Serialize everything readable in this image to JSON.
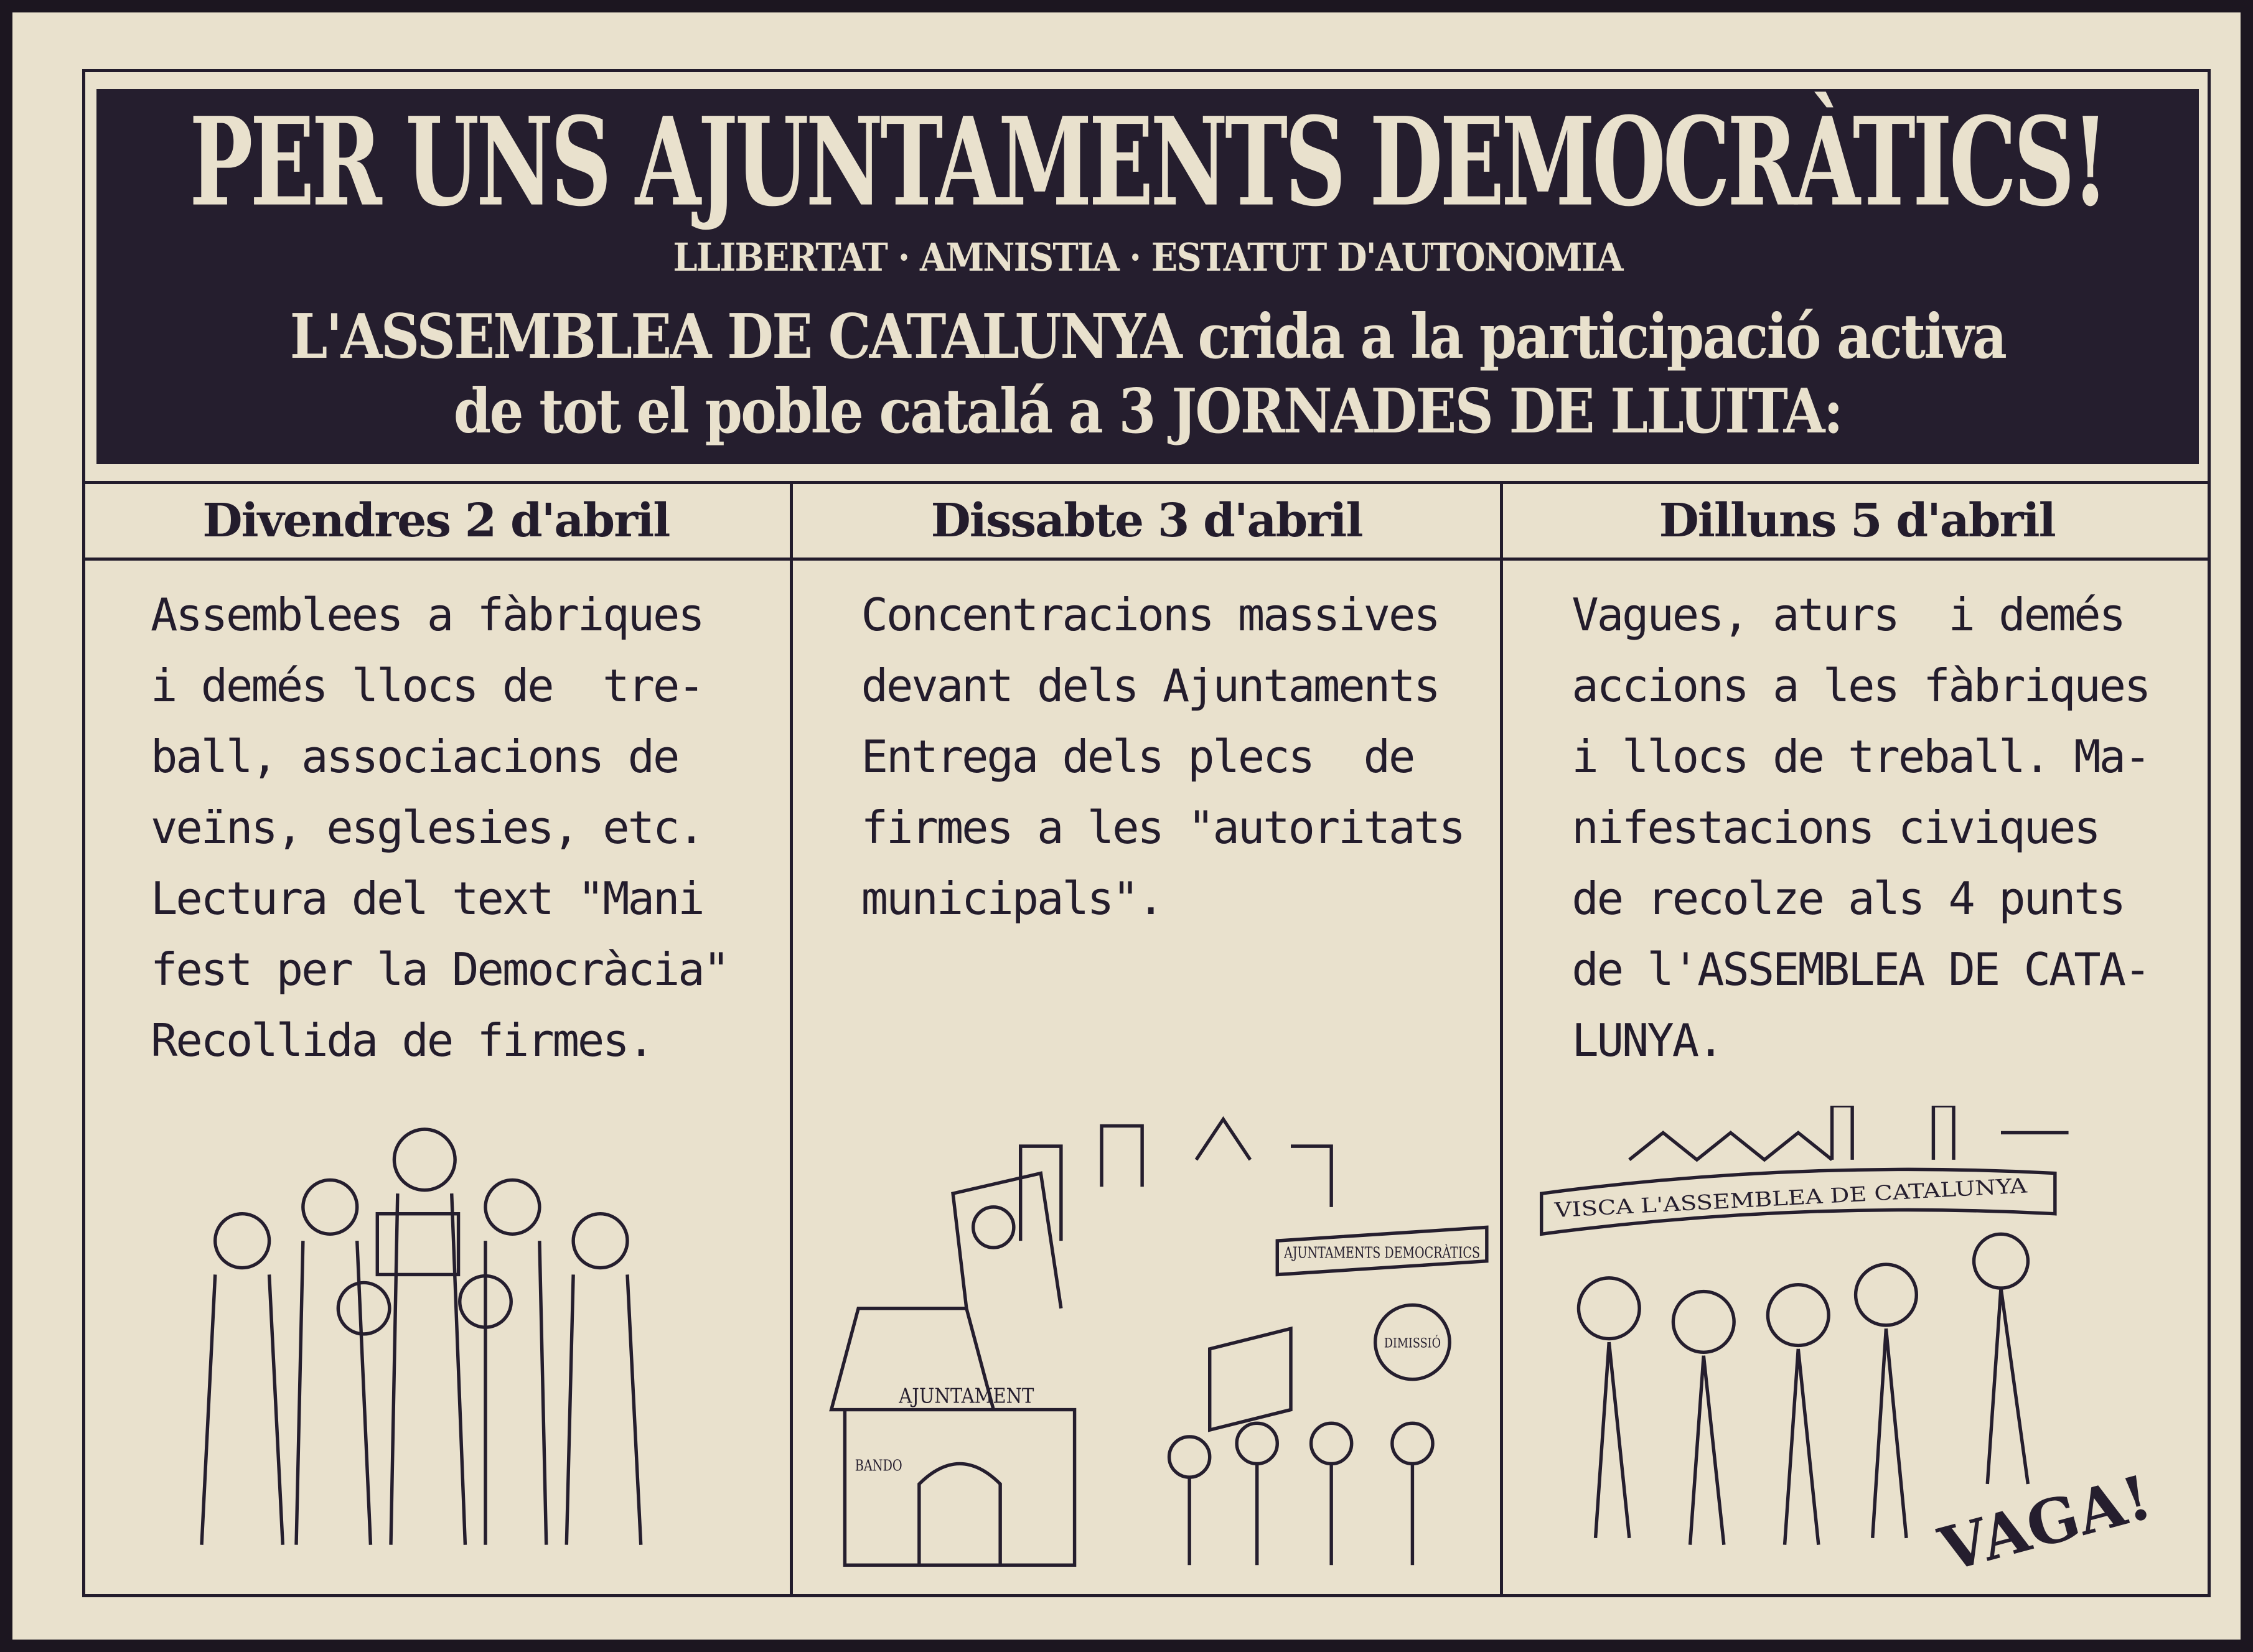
{
  "header": {
    "title": "PER UNS AJUNTAMENTS DEMOCRÀTICS!",
    "slogan": "LLIBERTAT · AMNISTIA · ESTATUT D'AUTONOMIA",
    "line1": "L'ASSEMBLEA DE CATALUNYA crida a la participació activa",
    "line2": "de tot el poble catalá a 3 JORNADES DE LLUITA:"
  },
  "columns": [
    {
      "day": "Divendres 2 d'abril",
      "text": "Assemblees a fàbriques\ni demés llocs de  tre-\nball, associacions de\nveïns, esglesies, etc.\nLectura del text \"Mani\nfest per la Democràcia\"\nRecollida de firmes."
    },
    {
      "day": "Dissabte 3 d'abril",
      "text": "Concentracions massives\ndevant dels Ajuntaments\nEntrega dels plecs  de\nfirmes a les \"autoritats\nmunicipals\"."
    },
    {
      "day": "Dilluns 5 d'abril",
      "text": "Vagues, aturs  i demés\naccions a les fàbriques\ni llocs de treball. Ma-\nnifestacions civiques\nde recolze als 4 punts\nde l'ASSEMBLEA DE CATA-\nLUNYA."
    }
  ],
  "illustrations": {
    "banner1": "AJUNTAMENT",
    "sign": "BANDO",
    "placard1": "AJUNTAMENTS DEMOCRÀTICS",
    "placard2": "DIMISSIÓ",
    "banner3": "VISCA L'ASSEMBLEA DE CATALUNYA",
    "shout": "VAGA!"
  },
  "colors": {
    "paper": "#e9e1cd",
    "ink": "#251e2e"
  }
}
